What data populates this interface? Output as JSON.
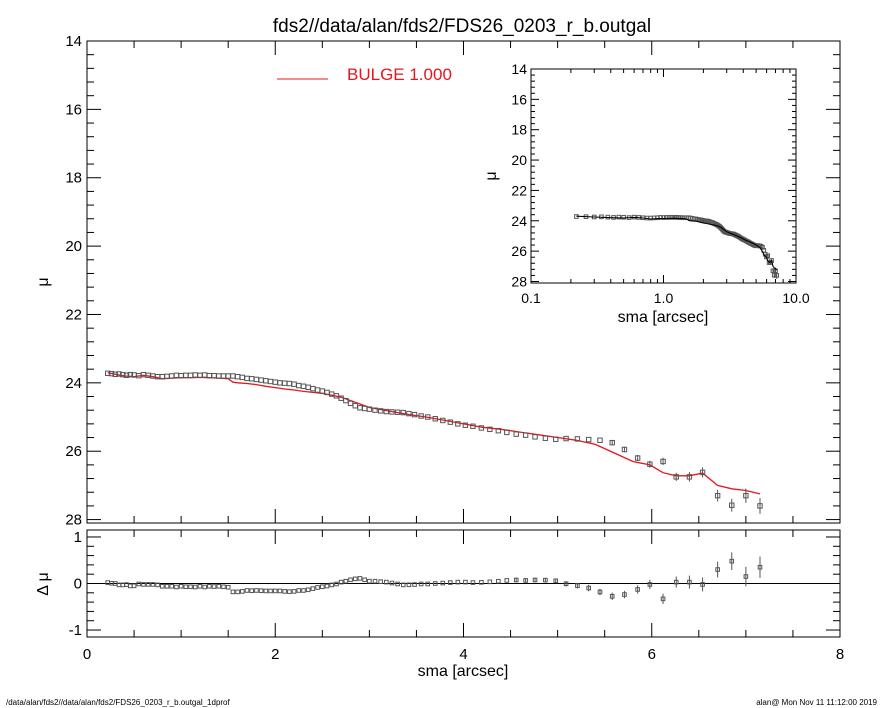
{
  "title": "fds2//data/alan/fds2/FDS26_0203_r_b.outgal",
  "footer": {
    "left": "/data/alan/fds2//data/alan/fds2/FDS26_0203_r_b.outgal_1dprof",
    "right": "alan@  Mon Nov 11 11:12:00 2019"
  },
  "colors": {
    "model": "#e8141e",
    "data": "#555555",
    "axes": "#000000"
  },
  "chart_data": [
    {
      "type": "scatter",
      "panel": "main",
      "xlabel": "sma [arcsec]",
      "ylabel": "μ",
      "xlim": [
        0,
        8
      ],
      "ylim": [
        28.1,
        14
      ],
      "y_inverted": true,
      "x_ticks": [
        "0",
        "2",
        "4",
        "6",
        "8"
      ],
      "y_ticks": [
        "14",
        "16",
        "18",
        "20",
        "22",
        "24",
        "26",
        "28"
      ],
      "legend": {
        "position": "top-center",
        "entries": [
          {
            "label": "BULGE  1.000",
            "color": "#e8141e"
          }
        ]
      },
      "data_series": {
        "name": "",
        "x": [
          0.22,
          0.26,
          0.3,
          0.34,
          0.38,
          0.42,
          0.46,
          0.5,
          0.55,
          0.6,
          0.65,
          0.7,
          0.75,
          0.8,
          0.85,
          0.9,
          0.95,
          1.0,
          1.05,
          1.1,
          1.15,
          1.2,
          1.25,
          1.3,
          1.35,
          1.4,
          1.45,
          1.5,
          1.55,
          1.6,
          1.65,
          1.7,
          1.75,
          1.8,
          1.85,
          1.9,
          1.95,
          2.0,
          2.05,
          2.1,
          2.15,
          2.2,
          2.25,
          2.3,
          2.35,
          2.4,
          2.45,
          2.5,
          2.55,
          2.6,
          2.65,
          2.7,
          2.75,
          2.8,
          2.85,
          2.9,
          2.95,
          3.0,
          3.06,
          3.12,
          3.18,
          3.24,
          3.3,
          3.36,
          3.42,
          3.48,
          3.55,
          3.62,
          3.7,
          3.78,
          3.86,
          3.94,
          4.02,
          4.1,
          4.19,
          4.28,
          4.37,
          4.46,
          4.56,
          4.66,
          4.76,
          4.87,
          4.98,
          5.09,
          5.21,
          5.33,
          5.45,
          5.58,
          5.71,
          5.85,
          5.98,
          6.12,
          6.26,
          6.4,
          6.54,
          6.7,
          6.85,
          7.0,
          7.15
        ],
        "y": [
          23.72,
          23.73,
          23.75,
          23.74,
          23.76,
          23.78,
          23.76,
          23.77,
          23.79,
          23.76,
          23.78,
          23.8,
          23.82,
          23.82,
          23.81,
          23.8,
          23.78,
          23.79,
          23.78,
          23.78,
          23.77,
          23.78,
          23.77,
          23.79,
          23.79,
          23.8,
          23.8,
          23.8,
          23.8,
          23.82,
          23.84,
          23.87,
          23.88,
          23.9,
          23.92,
          23.94,
          23.96,
          23.98,
          24.0,
          24.01,
          24.02,
          24.04,
          24.08,
          24.1,
          24.13,
          24.17,
          24.21,
          24.24,
          24.28,
          24.33,
          24.38,
          24.45,
          24.52,
          24.6,
          24.67,
          24.73,
          24.75,
          24.77,
          24.8,
          24.82,
          24.84,
          24.85,
          24.86,
          24.87,
          24.9,
          24.93,
          24.97,
          25.0,
          25.05,
          25.1,
          25.15,
          25.2,
          25.24,
          25.27,
          25.32,
          25.36,
          25.4,
          25.45,
          25.5,
          25.53,
          25.58,
          25.62,
          25.65,
          25.63,
          25.64,
          25.66,
          25.68,
          25.75,
          25.95,
          26.2,
          26.38,
          26.3,
          26.75,
          26.75,
          26.62,
          27.3,
          27.58,
          27.3,
          27.6
        ],
        "err": [
          0.02,
          0.02,
          0.02,
          0.02,
          0.02,
          0.02,
          0.02,
          0.02,
          0.02,
          0.02,
          0.02,
          0.02,
          0.02,
          0.02,
          0.02,
          0.02,
          0.02,
          0.02,
          0.02,
          0.02,
          0.02,
          0.02,
          0.02,
          0.02,
          0.02,
          0.02,
          0.02,
          0.02,
          0.02,
          0.02,
          0.02,
          0.02,
          0.02,
          0.02,
          0.02,
          0.02,
          0.02,
          0.02,
          0.02,
          0.02,
          0.02,
          0.02,
          0.02,
          0.02,
          0.02,
          0.02,
          0.02,
          0.02,
          0.02,
          0.02,
          0.02,
          0.02,
          0.02,
          0.02,
          0.02,
          0.02,
          0.02,
          0.02,
          0.02,
          0.02,
          0.02,
          0.02,
          0.02,
          0.03,
          0.03,
          0.03,
          0.03,
          0.03,
          0.03,
          0.03,
          0.03,
          0.03,
          0.03,
          0.04,
          0.04,
          0.04,
          0.04,
          0.04,
          0.05,
          0.05,
          0.05,
          0.05,
          0.05,
          0.06,
          0.06,
          0.07,
          0.07,
          0.08,
          0.08,
          0.09,
          0.1,
          0.11,
          0.12,
          0.14,
          0.15,
          0.17,
          0.19,
          0.21,
          0.23
        ]
      },
      "model_series": {
        "name": "BULGE  1.000",
        "color": "#e8141e",
        "x": [
          0.22,
          0.3,
          0.4,
          0.5,
          0.6,
          0.7,
          0.8,
          0.9,
          1.0,
          1.1,
          1.2,
          1.3,
          1.4,
          1.5,
          1.55,
          1.6,
          1.7,
          1.8,
          1.9,
          2.0,
          2.1,
          2.2,
          2.3,
          2.4,
          2.5,
          2.6,
          2.7,
          2.8,
          2.9,
          3.0,
          3.2,
          3.4,
          3.6,
          3.8,
          4.0,
          4.2,
          4.4,
          4.6,
          4.8,
          5.0,
          5.2,
          5.4,
          5.6,
          5.8,
          5.98,
          6.12,
          6.26,
          6.4,
          6.54,
          6.7,
          6.85,
          7.0,
          7.15
        ],
        "y": [
          23.7,
          23.75,
          23.8,
          23.82,
          23.78,
          23.82,
          23.88,
          23.86,
          23.85,
          23.85,
          23.84,
          23.85,
          23.86,
          23.88,
          23.98,
          24.0,
          24.02,
          24.05,
          24.1,
          24.14,
          24.18,
          24.21,
          24.25,
          24.28,
          24.31,
          24.36,
          24.42,
          24.52,
          24.62,
          24.72,
          24.82,
          24.92,
          25.0,
          25.1,
          25.2,
          25.3,
          25.36,
          25.44,
          25.52,
          25.6,
          25.68,
          25.8,
          26.05,
          26.3,
          26.4,
          26.63,
          26.72,
          26.72,
          26.64,
          27.0,
          27.1,
          27.15,
          27.25
        ]
      }
    },
    {
      "type": "scatter",
      "panel": "residuals",
      "xlabel": "sma [arcsec]",
      "ylabel": "Δ μ",
      "xlim": [
        0,
        8
      ],
      "ylim": [
        -1.15,
        1.15
      ],
      "y_ticks": [
        "1",
        "0",
        "-1"
      ],
      "zero_line": true
    },
    {
      "type": "scatter",
      "panel": "inset",
      "xlabel": "sma [arcsec]",
      "ylabel": "μ",
      "x_scale": "log",
      "xlim": [
        0.1,
        10
      ],
      "ylim": [
        28.1,
        14
      ],
      "y_inverted": true,
      "x_ticks": [
        "0.1",
        "1.0",
        "10.0"
      ],
      "y_ticks": [
        "14",
        "16",
        "18",
        "20",
        "22",
        "24",
        "26",
        "28"
      ]
    }
  ]
}
